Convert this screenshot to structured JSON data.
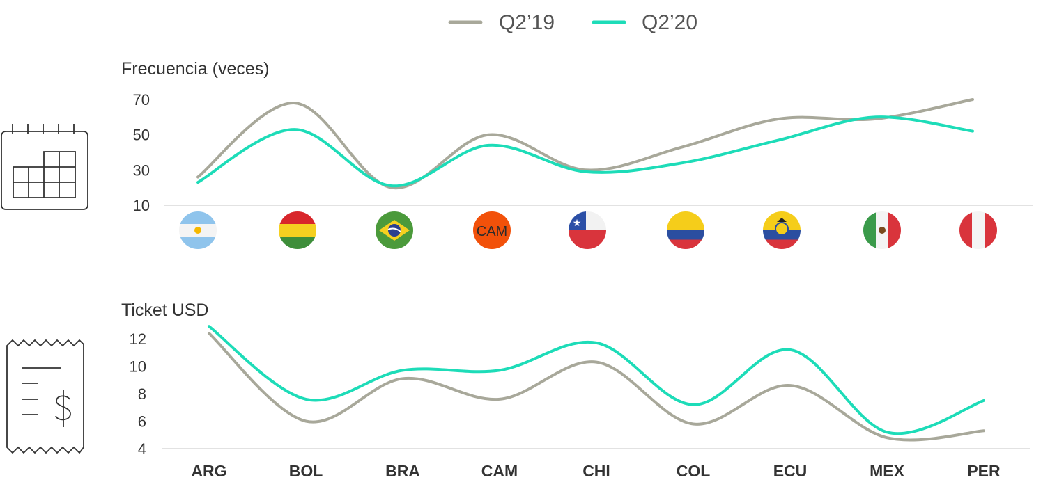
{
  "legend": [
    {
      "name": "Q2’19",
      "color": "#a8a89a"
    },
    {
      "name": "Q2’20",
      "color": "#1ddcb8"
    }
  ],
  "chart_data": [
    {
      "type": "line",
      "title": "Frecuencia (veces)",
      "categories": [
        "ARG",
        "BOL",
        "BRA",
        "CAM",
        "CHI",
        "COL",
        "ECU",
        "MEX",
        "PER"
      ],
      "y_ticks": [
        "10",
        "30",
        "50",
        "70"
      ],
      "ylim": [
        10,
        70
      ],
      "series": [
        {
          "name": "Q2’19",
          "color": "#a8a89a",
          "values": [
            26,
            68,
            20,
            50,
            30,
            43,
            59,
            59,
            70
          ]
        },
        {
          "name": "Q2’20",
          "color": "#1ddcb8",
          "values": [
            23,
            53,
            21,
            44,
            29,
            34,
            47,
            60,
            52
          ]
        }
      ],
      "icon": "calendar-icon"
    },
    {
      "type": "line",
      "title": "Ticket USD",
      "categories": [
        "ARG",
        "BOL",
        "BRA",
        "CAM",
        "CHI",
        "COL",
        "ECU",
        "MEX",
        "PER"
      ],
      "y_ticks": [
        "4",
        "6",
        "8",
        "10",
        "12"
      ],
      "ylim": [
        4,
        12
      ],
      "series": [
        {
          "name": "Q2’19",
          "color": "#a8a89a",
          "values": [
            12.4,
            6.0,
            9.1,
            7.6,
            10.3,
            5.8,
            8.6,
            4.8,
            5.3
          ]
        },
        {
          "name": "Q2’20",
          "color": "#1ddcb8",
          "values": [
            12.9,
            7.6,
            9.7,
            9.7,
            11.7,
            7.2,
            11.2,
            5.2,
            7.5
          ]
        }
      ],
      "icon": "receipt-dollar-icon"
    }
  ],
  "flags": [
    {
      "code": "ARG",
      "icon": "argentina-flag-icon"
    },
    {
      "code": "BOL",
      "icon": "bolivia-flag-icon"
    },
    {
      "code": "BRA",
      "icon": "brazil-flag-icon"
    },
    {
      "code": "CAM",
      "icon": "central-america-flag-icon",
      "text": "CAM"
    },
    {
      "code": "CHI",
      "icon": "chile-flag-icon"
    },
    {
      "code": "COL",
      "icon": "colombia-flag-icon"
    },
    {
      "code": "ECU",
      "icon": "ecuador-flag-icon"
    },
    {
      "code": "MEX",
      "icon": "mexico-flag-icon"
    },
    {
      "code": "PER",
      "icon": "peru-flag-icon"
    }
  ]
}
